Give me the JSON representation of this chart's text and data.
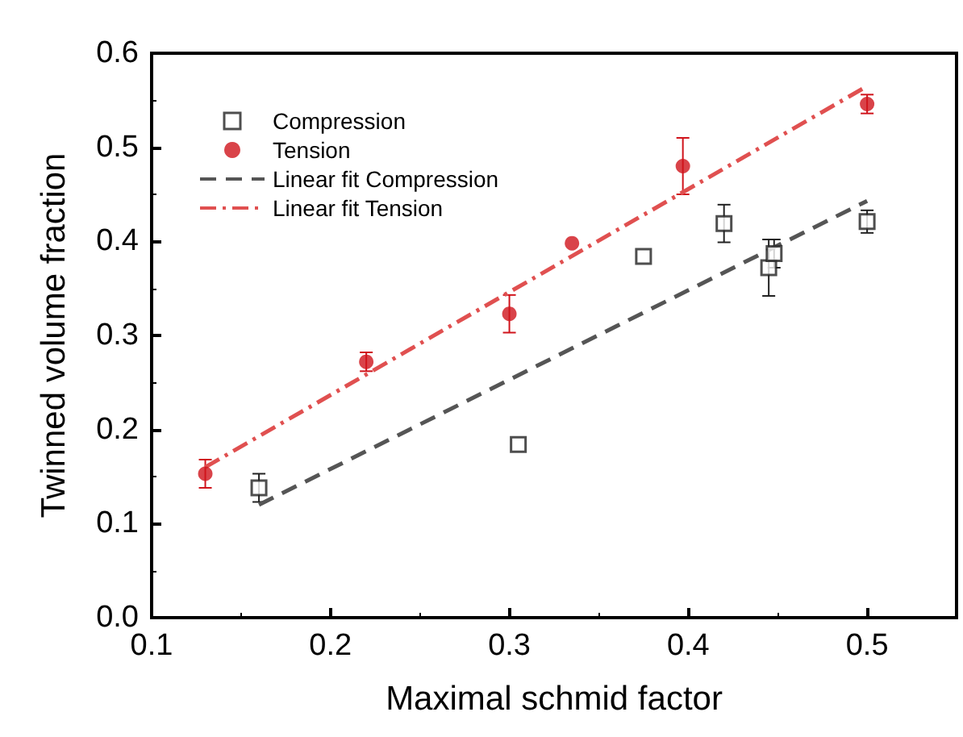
{
  "chart_data": {
    "type": "scatter",
    "xlabel": "Maximal schmid factor",
    "ylabel": "Twinned volume fraction",
    "xlim": [
      0.1,
      0.55
    ],
    "xticks": [
      0.1,
      0.2,
      0.3,
      0.4,
      0.5
    ],
    "ylim": [
      0,
      0.6
    ],
    "yticks": [
      {
        "value": 0,
        "label": "0.0"
      },
      0.1,
      0.2,
      0.3,
      0.4,
      0.5,
      0.6
    ],
    "legend": "top left",
    "grid": false,
    "series": [
      {
        "name": "Compression",
        "marker": "square",
        "color": "#222222",
        "x": [
          0.16,
          0.305,
          0.375,
          0.42,
          0.445,
          0.448,
          0.5
        ],
        "values": [
          0.138,
          0.184,
          0.384,
          0.419,
          0.372,
          0.387,
          0.421
        ],
        "errors": [
          0.015,
          null,
          null,
          0.02,
          0.03,
          0.015,
          0.012
        ]
      },
      {
        "name": "Tension",
        "marker": "circle",
        "color": "#d0141c",
        "x": [
          0.13,
          0.22,
          0.3,
          0.335,
          0.397,
          0.5
        ],
        "values": [
          0.153,
          0.272,
          0.323,
          0.398,
          0.48,
          0.546
        ],
        "errors": [
          0.015,
          0.01,
          0.02,
          null,
          0.03,
          0.01
        ]
      },
      {
        "name": "Linear fit Compression",
        "type": "line",
        "line_style": "dashed",
        "color": "#555555",
        "x": [
          0.16,
          0.5
        ],
        "values": [
          0.12,
          0.443
        ]
      },
      {
        "name": "Linear fit Tension",
        "type": "line",
        "line_style": "dashdot",
        "color": "#e05050",
        "x": [
          0.13,
          0.5
        ],
        "values": [
          0.16,
          0.565
        ]
      }
    ]
  }
}
